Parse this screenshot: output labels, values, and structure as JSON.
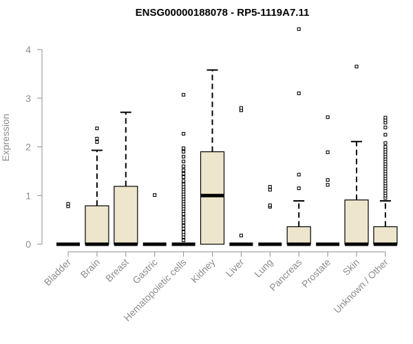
{
  "chart_data": {
    "type": "box",
    "title": "ENSG00000188078 - RP5-1119A7.11",
    "xlabel": "",
    "ylabel": "Expression",
    "ylim": [
      0,
      4.5
    ],
    "yticks": [
      0,
      1,
      2,
      3,
      4
    ],
    "grid": false,
    "colors": {
      "box_fill": "#ede6cc",
      "outline": "#000000",
      "axis": "#8c8c8c"
    },
    "categories": [
      "Bladder",
      "Brain",
      "Breast",
      "Gastric",
      "Hematopoietic cells",
      "Kidney",
      "Liver",
      "Lung",
      "Pancreas",
      "Prostate",
      "Skin",
      "Unknown / Other"
    ],
    "boxes": [
      {
        "q1": 0,
        "median": 0,
        "q3": 0,
        "whisker_low": 0,
        "whisker_high": 0,
        "outliers": [
          0.78,
          0.83
        ]
      },
      {
        "q1": 0,
        "median": 0,
        "q3": 0.79,
        "whisker_low": 0,
        "whisker_high": 1.93,
        "outliers": [
          2.1,
          2.17,
          2.38
        ]
      },
      {
        "q1": 0,
        "median": 0,
        "q3": 1.19,
        "whisker_low": 0,
        "whisker_high": 2.71,
        "outliers": []
      },
      {
        "q1": 0,
        "median": 0,
        "q3": 0,
        "whisker_low": 0,
        "whisker_high": 0,
        "outliers": [
          1.01
        ]
      },
      {
        "q1": 0,
        "median": 0,
        "q3": 0,
        "whisker_low": 0,
        "whisker_high": 0,
        "outliers": [
          0.08,
          0.15,
          0.2,
          0.25,
          0.32,
          0.38,
          0.45,
          0.5,
          0.55,
          0.62,
          0.68,
          0.73,
          0.78,
          0.83,
          0.88,
          0.93,
          0.98,
          1.03,
          1.08,
          1.13,
          1.18,
          1.23,
          1.3,
          1.38,
          1.45,
          1.52,
          1.6,
          1.7,
          1.8,
          1.9,
          1.97,
          2.27,
          3.07
        ]
      },
      {
        "q1": 0,
        "median": 1.0,
        "q3": 1.9,
        "whisker_low": 0,
        "whisker_high": 3.58,
        "outliers": []
      },
      {
        "q1": 0,
        "median": 0,
        "q3": 0,
        "whisker_low": 0,
        "whisker_high": 0,
        "outliers": [
          0.18,
          2.75,
          2.8
        ]
      },
      {
        "q1": 0,
        "median": 0,
        "q3": 0,
        "whisker_low": 0,
        "whisker_high": 0,
        "outliers": [
          0.77,
          0.8,
          1.12,
          1.18
        ]
      },
      {
        "q1": 0,
        "median": 0,
        "q3": 0.36,
        "whisker_low": 0,
        "whisker_high": 0.89,
        "outliers": [
          1.15,
          1.43,
          3.1,
          4.42
        ]
      },
      {
        "q1": 0,
        "median": 0,
        "q3": 0,
        "whisker_low": 0,
        "whisker_high": 0,
        "outliers": [
          1.22,
          1.32,
          1.89,
          2.61
        ]
      },
      {
        "q1": 0,
        "median": 0,
        "q3": 0.91,
        "whisker_low": 0,
        "whisker_high": 2.11,
        "outliers": [
          3.65
        ]
      },
      {
        "q1": 0,
        "median": 0,
        "q3": 0.36,
        "whisker_low": 0,
        "whisker_high": 0.89,
        "outliers": [
          0.95,
          1.0,
          1.05,
          1.1,
          1.15,
          1.2,
          1.25,
          1.3,
          1.35,
          1.4,
          1.45,
          1.5,
          1.55,
          1.6,
          1.65,
          1.7,
          1.75,
          1.8,
          1.85,
          1.9,
          1.95,
          2.0,
          2.08,
          2.25,
          2.4,
          2.5,
          2.55,
          2.6
        ]
      }
    ]
  }
}
